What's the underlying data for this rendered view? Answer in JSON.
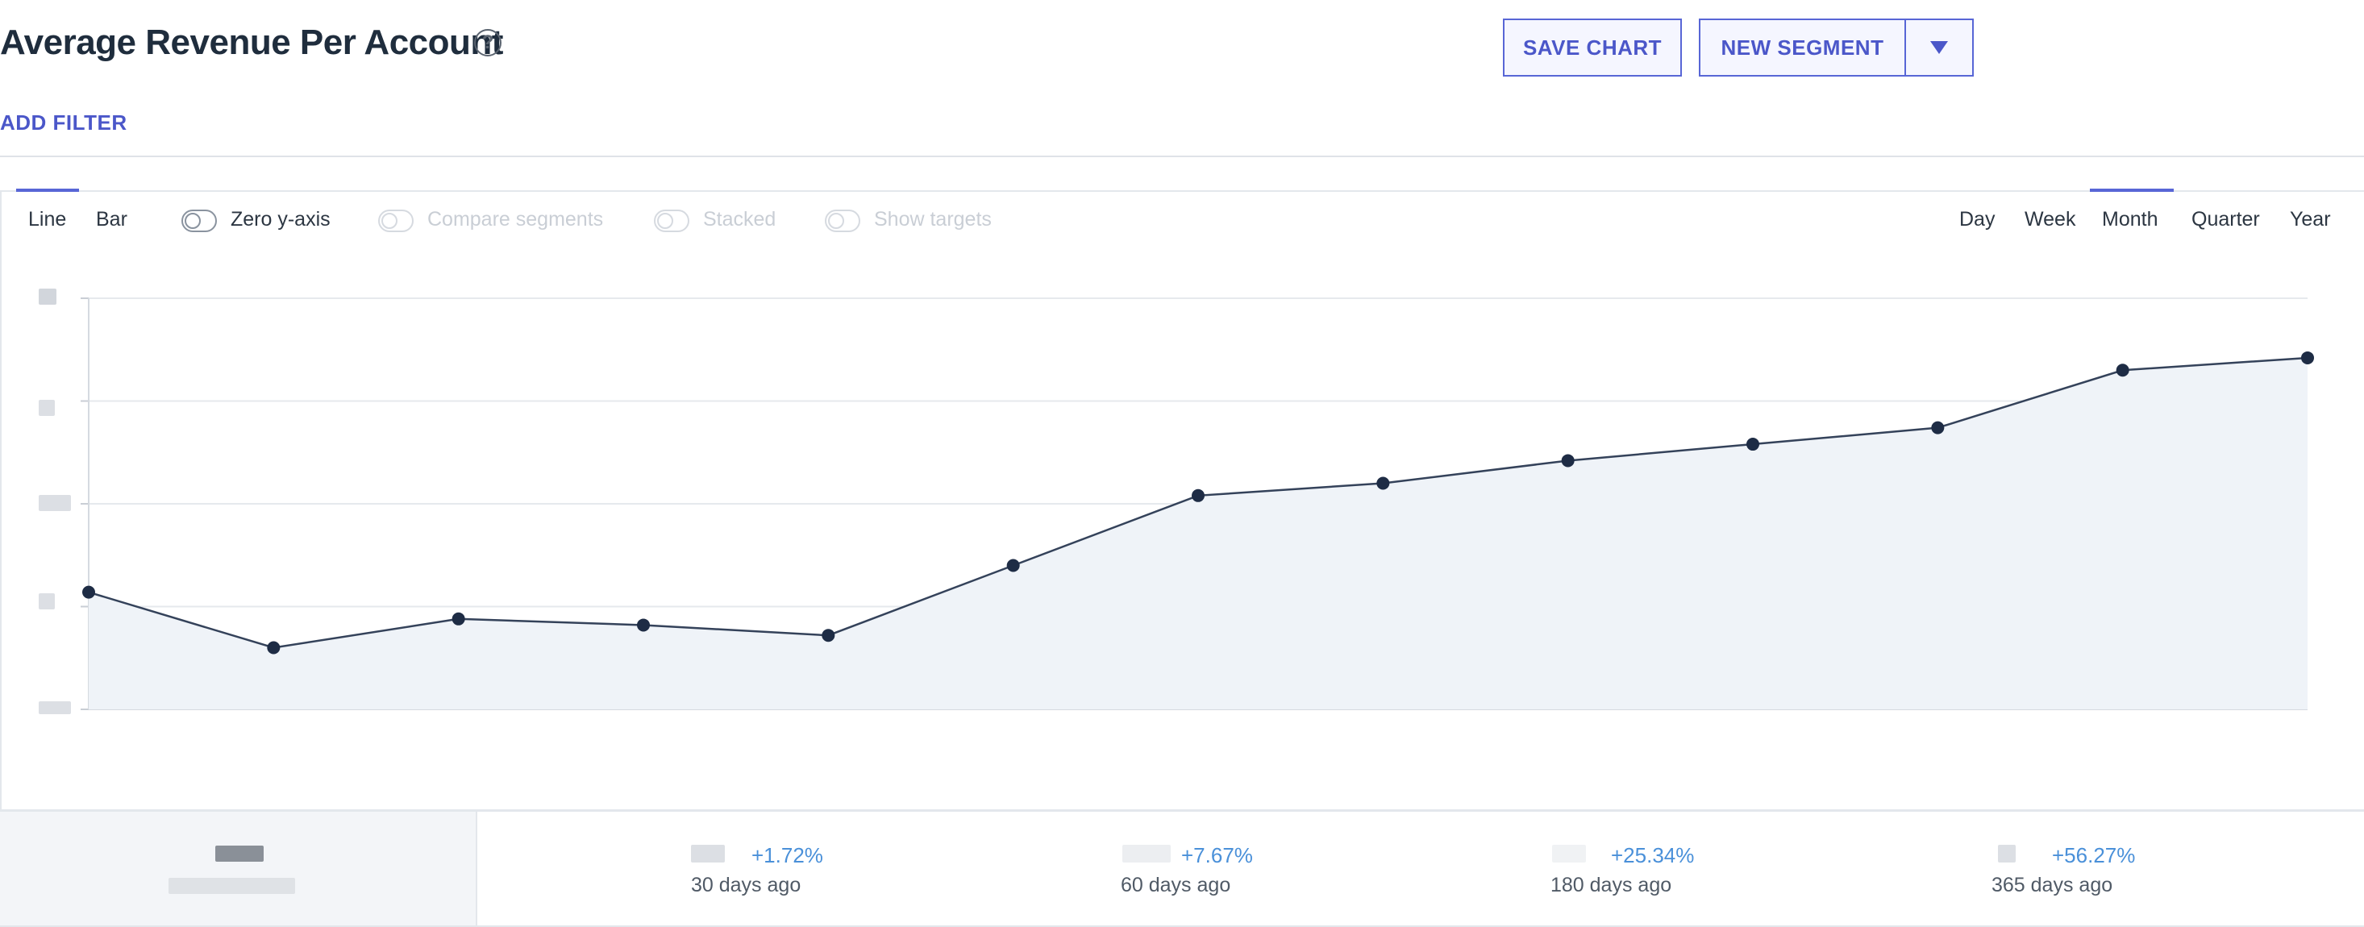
{
  "header": {
    "title": "Average Revenue Per Account",
    "help_icon": "question-circle-icon",
    "save_chart_label": "SAVE CHART",
    "new_segment_label": "NEW SEGMENT",
    "dropdown_icon": "caret-down-icon"
  },
  "filters": {
    "add_filter_label": "ADD FILTER"
  },
  "toolbar": {
    "chart_types": [
      "Line",
      "Bar"
    ],
    "active_chart_type": "Line",
    "toggles": [
      {
        "label": "Zero y-axis",
        "enabled": true,
        "on": false
      },
      {
        "label": "Compare segments",
        "enabled": false,
        "on": false
      },
      {
        "label": "Stacked",
        "enabled": false,
        "on": false
      },
      {
        "label": "Show targets",
        "enabled": false,
        "on": false
      }
    ],
    "periods": [
      "Day",
      "Week",
      "Month",
      "Quarter",
      "Year"
    ],
    "active_period": "Month"
  },
  "chart_data": {
    "type": "area",
    "series": [
      {
        "values": [
          0.57,
          0.3,
          0.44,
          0.41,
          0.36,
          0.7,
          1.04,
          1.1,
          1.21,
          1.29,
          1.37,
          1.65,
          1.71
        ]
      }
    ],
    "ylim": [
      0,
      2
    ],
    "y_tick_values": [
      0,
      0.5,
      1,
      1.5,
      2
    ],
    "grid": true,
    "legend": "none",
    "line_color": "#34425a",
    "fill_color": "#eff3f8"
  },
  "stats": {
    "comparisons": [
      {
        "change": "+1.72%",
        "label": "30 days ago"
      },
      {
        "change": "+7.67%",
        "label": "60 days ago"
      },
      {
        "change": "+25.34%",
        "label": "180 days ago"
      },
      {
        "change": "+56.27%",
        "label": "365 days ago"
      }
    ],
    "positive_color": "#4a90d9"
  }
}
